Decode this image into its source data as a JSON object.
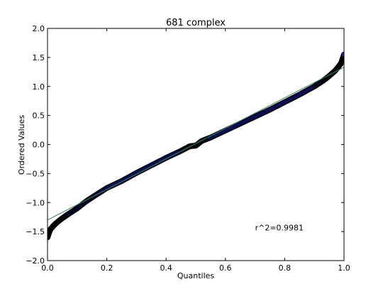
{
  "chart_data": {
    "type": "scatter",
    "title": "681 complex",
    "xlabel": "Quantiles",
    "ylabel": "Ordered Values",
    "xlim": [
      0.0,
      1.0
    ],
    "ylim": [
      -2.0,
      2.0
    ],
    "xticks": [
      "0.0",
      "0.2",
      "0.4",
      "0.6",
      "0.8",
      "1.0"
    ],
    "yticks": [
      "2.0",
      "1.5",
      "1.0",
      "0.5",
      "0.0",
      "−0.5",
      "−1.0",
      "−1.5",
      "−2.0"
    ],
    "grid": false,
    "annotation": {
      "text": "r^2=0.9981",
      "x": 0.7,
      "y": -1.48
    },
    "fit_line": {
      "x": [
        0.0,
        1.0
      ],
      "y": [
        -1.3,
        1.33
      ],
      "color": "#2e8b57"
    },
    "series": [
      {
        "color": "#1a1aa0",
        "edge_color": "#000000",
        "x": [
          0.0,
          0.005,
          0.01,
          0.02,
          0.03,
          0.05,
          0.07,
          0.1,
          0.13,
          0.16,
          0.2,
          0.25,
          0.3,
          0.35,
          0.4,
          0.45,
          0.48,
          0.5,
          0.52,
          0.55,
          0.6,
          0.65,
          0.7,
          0.75,
          0.8,
          0.85,
          0.9,
          0.93,
          0.95,
          0.97,
          0.98,
          0.99,
          0.995,
          1.0
        ],
        "y": [
          -1.6,
          -1.52,
          -1.46,
          -1.4,
          -1.35,
          -1.27,
          -1.2,
          -1.1,
          -0.98,
          -0.88,
          -0.75,
          -0.63,
          -0.49,
          -0.36,
          -0.23,
          -0.11,
          -0.03,
          -0.02,
          0.06,
          0.12,
          0.24,
          0.36,
          0.48,
          0.6,
          0.73,
          0.86,
          1.0,
          1.1,
          1.18,
          1.27,
          1.33,
          1.4,
          1.47,
          1.55
        ]
      }
    ]
  }
}
